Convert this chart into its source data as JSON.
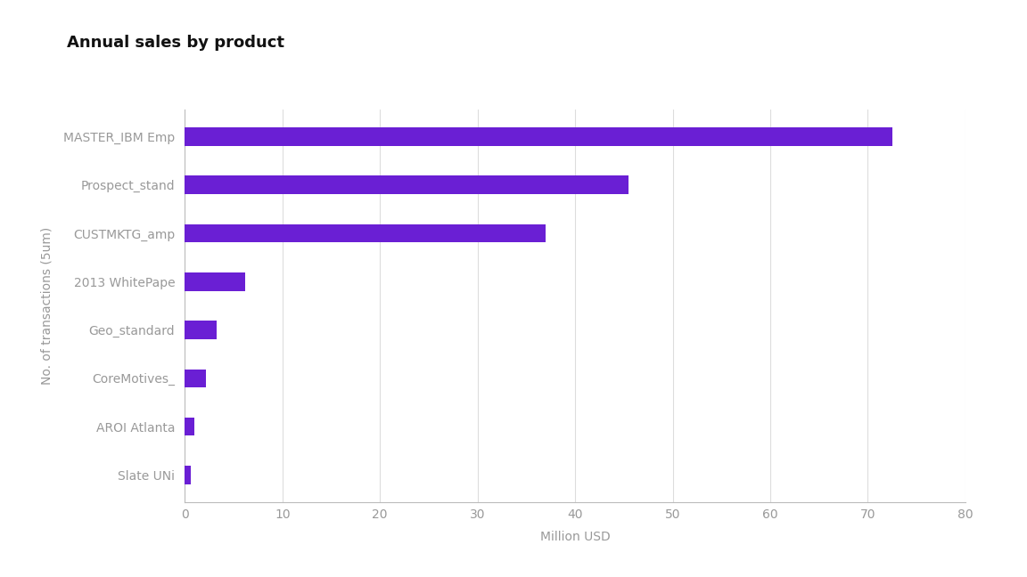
{
  "title": "Annual sales by product",
  "categories": [
    "MASTER_IBM Emp",
    "Prospect_stand",
    "CUSTMKTG_amp",
    "2013 WhitePape",
    "Geo_standard",
    "CoreMotives_",
    "AROI Atlanta",
    "Slate UNi"
  ],
  "values": [
    72.5,
    45.5,
    37.0,
    6.2,
    3.3,
    2.2,
    1.0,
    0.6
  ],
  "bar_color": "#6A1FD4",
  "bar_height": 0.38,
  "xlabel": "Million USD",
  "ylabel": "No. of transactions (5um)",
  "xlim": [
    0,
    80
  ],
  "xticks": [
    0,
    10,
    20,
    30,
    40,
    50,
    60,
    70,
    80
  ],
  "title_fontsize": 13,
  "label_fontsize": 10,
  "tick_fontsize": 10,
  "background_color": "#FFFFFF",
  "plot_bg_color": "#FFFFFF",
  "grid_color": "#DDDDDD",
  "tick_color": "#999999",
  "spine_color": "#BBBBBB"
}
